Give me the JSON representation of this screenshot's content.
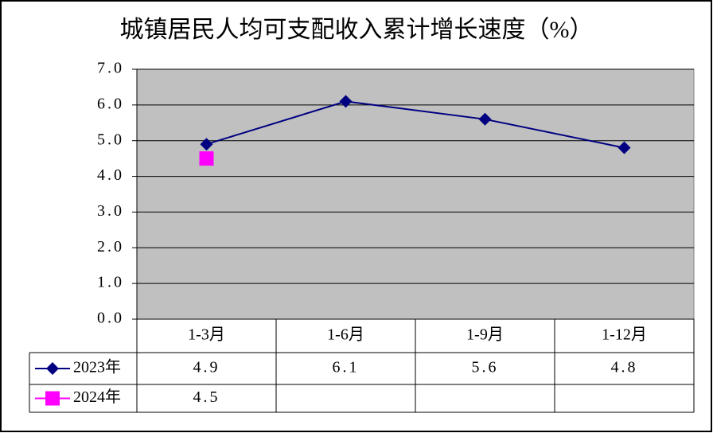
{
  "chart_data": {
    "type": "line",
    "title": "城镇居民人均可支配收入累计增长速度（%）",
    "categories": [
      "1-3月",
      "1-6月",
      "1-9月",
      "1-12月"
    ],
    "series": [
      {
        "name": "2023年",
        "color": "#000080",
        "marker": "diamond",
        "values": [
          4.9,
          6.1,
          5.6,
          4.8
        ]
      },
      {
        "name": "2024年",
        "color": "#ff00ff",
        "marker": "square",
        "values": [
          4.5,
          null,
          null,
          null
        ]
      }
    ],
    "ylim": [
      0,
      7
    ],
    "yticks": [
      {
        "value": 0,
        "label": "0.0"
      },
      {
        "value": 1,
        "label": "1.0"
      },
      {
        "value": 2,
        "label": "2.0"
      },
      {
        "value": 3,
        "label": "3.0"
      },
      {
        "value": 4,
        "label": "4.0"
      },
      {
        "value": 5,
        "label": "5.0"
      },
      {
        "value": 6,
        "label": "6.0"
      },
      {
        "value": 7,
        "label": "7.0"
      }
    ],
    "grid": true,
    "plot_background": "#c0c0c0",
    "legend": "data-table"
  }
}
